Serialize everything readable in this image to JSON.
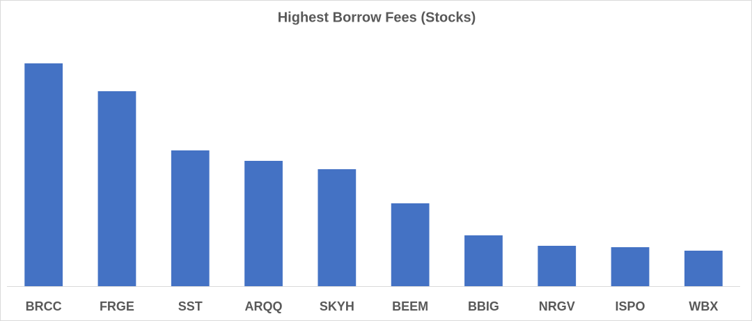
{
  "chart_data": {
    "type": "bar",
    "title": "Highest Borrow Fees (Stocks)",
    "categories": [
      "BRCC",
      "FRGE",
      "SST",
      "ARQQ",
      "SKYH",
      "BEEM",
      "BBIG",
      "NRGV",
      "ISPO",
      "WBX"
    ],
    "values": [
      320,
      280,
      195,
      180,
      168,
      119,
      73,
      58,
      56,
      51
    ],
    "color": "#4472c4",
    "ylim": [
      0,
      320
    ]
  }
}
